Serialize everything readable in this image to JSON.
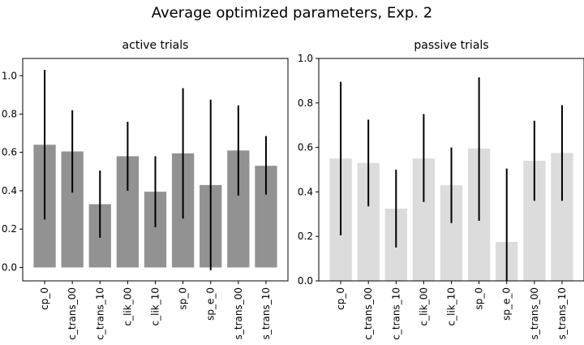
{
  "figure": {
    "suptitle": "Average optimized parameters, Exp. 2"
  },
  "chart_data": [
    {
      "type": "bar",
      "title": "active trials",
      "categories": [
        "cp_0",
        "c_trans_00",
        "c_trans_10",
        "c_lik_00",
        "c_lik_10",
        "sp_0",
        "sp_e_0",
        "s_trans_00",
        "s_trans_10"
      ],
      "values": [
        0.64,
        0.605,
        0.33,
        0.58,
        0.395,
        0.595,
        0.43,
        0.61,
        0.53
      ],
      "error_low": [
        0.25,
        0.39,
        0.155,
        0.4,
        0.21,
        0.255,
        -0.015,
        0.375,
        0.38
      ],
      "error_high": [
        1.03,
        0.82,
        0.505,
        0.76,
        0.58,
        0.935,
        0.875,
        0.845,
        0.685
      ],
      "ylim": [
        -0.07,
        1.09
      ],
      "yticks": [
        "0.0",
        "0.2",
        "0.4",
        "0.6",
        "0.8",
        "1.0"
      ],
      "bar_color": "#929292",
      "xlabel": "",
      "ylabel": ""
    },
    {
      "type": "bar",
      "title": "passive trials",
      "categories": [
        "cp_0",
        "c_trans_00",
        "c_trans_10",
        "c_lik_00",
        "c_lik_10",
        "sp_0",
        "sp_e_0",
        "s_trans_00",
        "s_trans_10"
      ],
      "values": [
        0.55,
        0.53,
        0.325,
        0.55,
        0.43,
        0.595,
        0.175,
        0.54,
        0.575
      ],
      "error_low": [
        0.205,
        0.335,
        0.15,
        0.355,
        0.26,
        0.27,
        0.0,
        0.36,
        0.36
      ],
      "error_high": [
        0.895,
        0.725,
        0.5,
        0.75,
        0.6,
        0.915,
        0.505,
        0.72,
        0.79
      ],
      "ylim": [
        0.0,
        1.0
      ],
      "yticks": [
        "0.0",
        "0.2",
        "0.4",
        "0.6",
        "0.8",
        "1.0"
      ],
      "bar_color": "#dcdcdc",
      "xlabel": "",
      "ylabel": ""
    }
  ]
}
